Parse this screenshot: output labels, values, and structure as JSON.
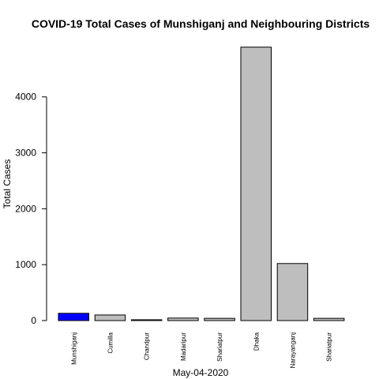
{
  "chart_data": {
    "type": "bar",
    "title": "COVID-19 Total Cases of Munshiganj and Neighbouring Districts",
    "xlabel": "May-04-2020",
    "ylabel": "Total Cases",
    "categories": [
      "Munshiganj",
      "Cumilla",
      "Chandpur",
      "Madaripur",
      "Shariatpur",
      "Dhaka",
      "Narayanganj",
      "Shariatpur"
    ],
    "values": [
      130,
      100,
      15,
      45,
      40,
      4890,
      1020,
      40
    ],
    "colors": [
      "#0000ff",
      "#bebebe",
      "#bebebe",
      "#bebebe",
      "#bebebe",
      "#bebebe",
      "#bebebe",
      "#bebebe"
    ],
    "yticks": [
      0,
      1000,
      2000,
      3000,
      4000
    ],
    "ylim": [
      0,
      4900
    ],
    "grid": false,
    "legend": "none"
  }
}
